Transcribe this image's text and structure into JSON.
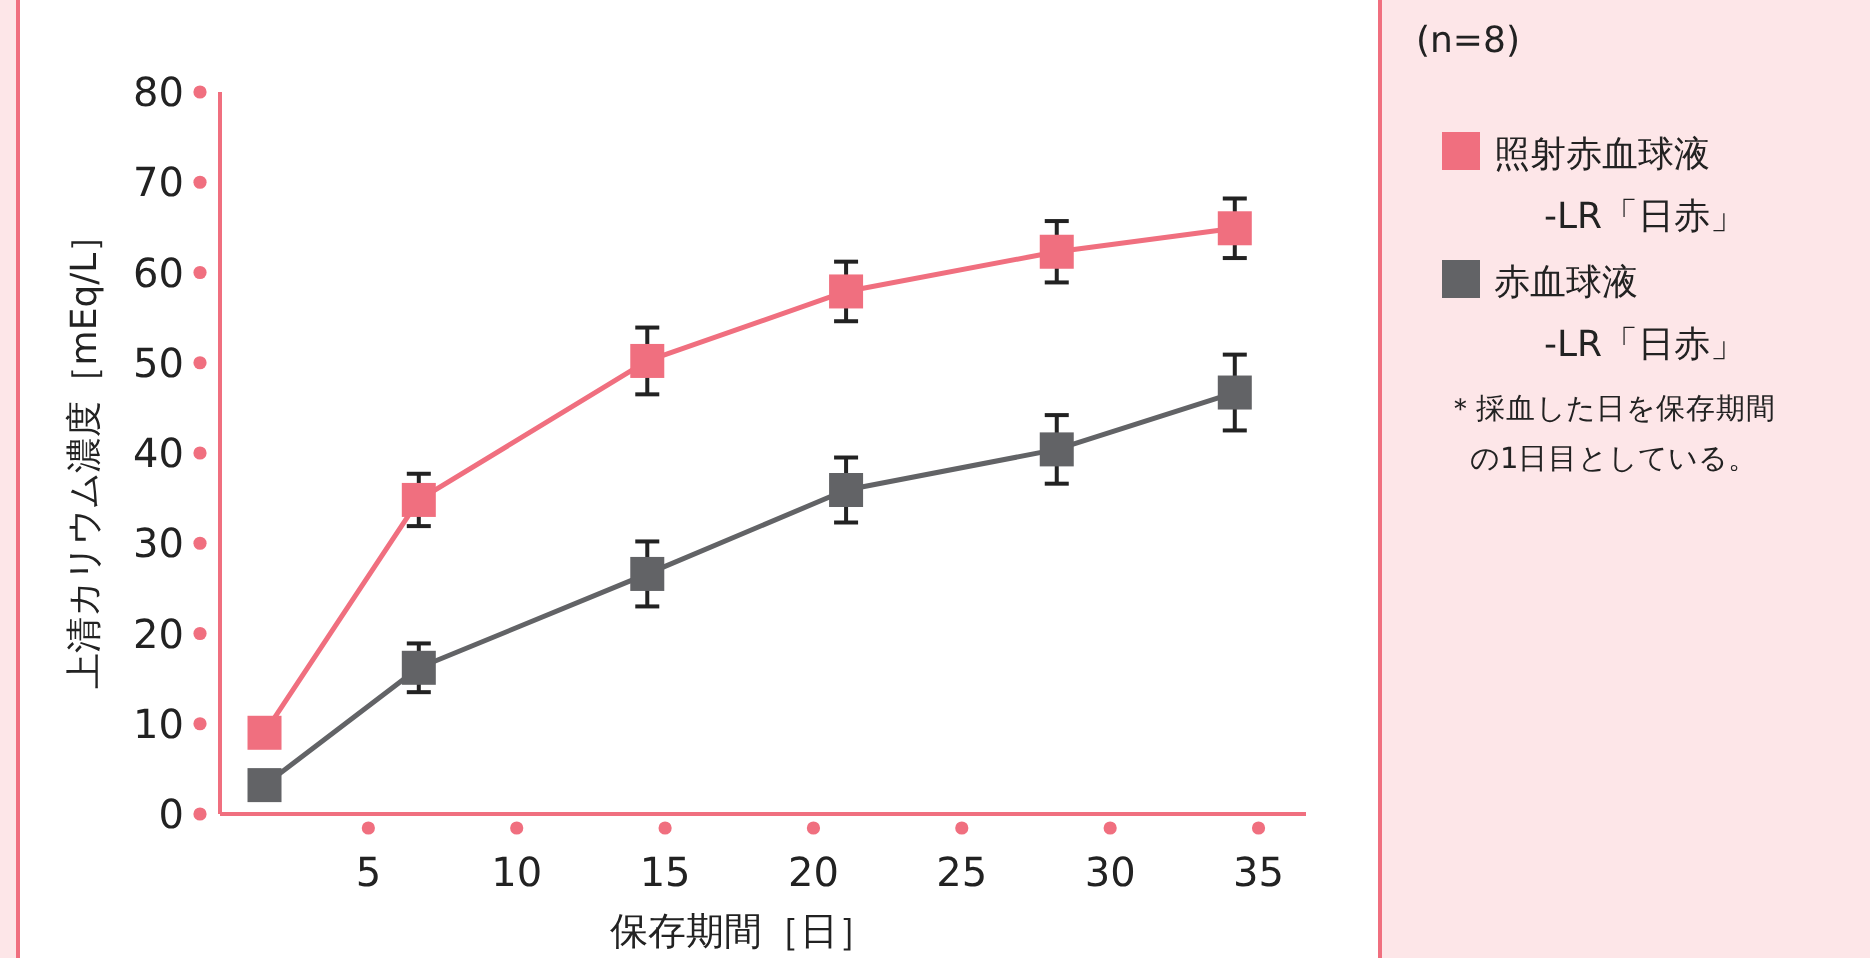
{
  "chart_data": {
    "type": "line",
    "xlabel": "保存期間［日］",
    "ylabel": "上清カリウム濃度［mEq/L］",
    "xlim": [
      0,
      36.6
    ],
    "xticks": [
      5,
      10,
      15,
      20,
      25,
      30,
      35
    ],
    "ylim": [
      0,
      80
    ],
    "yticks": [
      0,
      10,
      20,
      30,
      40,
      50,
      60,
      70,
      80
    ],
    "grid": false,
    "legend": "right",
    "marker": "square",
    "line_style": "solid",
    "series": [
      {
        "name": "照射赤血球液-LR「日赤」",
        "color": "#f06f7f",
        "x": [
          1.5,
          6.7,
          14.4,
          21.1,
          28.2,
          34.2
        ],
        "values": [
          9.0,
          34.8,
          50.2,
          57.9,
          62.3,
          64.9
        ],
        "errors": [
          null,
          2.9,
          3.7,
          3.3,
          3.4,
          3.3
        ]
      },
      {
        "name": "赤血球液-LR「日赤」",
        "color": "#626366",
        "x": [
          1.5,
          6.7,
          14.4,
          21.1,
          28.2,
          34.2
        ],
        "values": [
          3.2,
          16.2,
          26.6,
          35.9,
          40.4,
          46.7
        ],
        "errors": [
          null,
          2.7,
          3.6,
          3.6,
          3.8,
          4.2
        ]
      }
    ],
    "annotations": [
      "(n=8)",
      "＊採血した日を保存期間の1日目としている。"
    ]
  }
}
